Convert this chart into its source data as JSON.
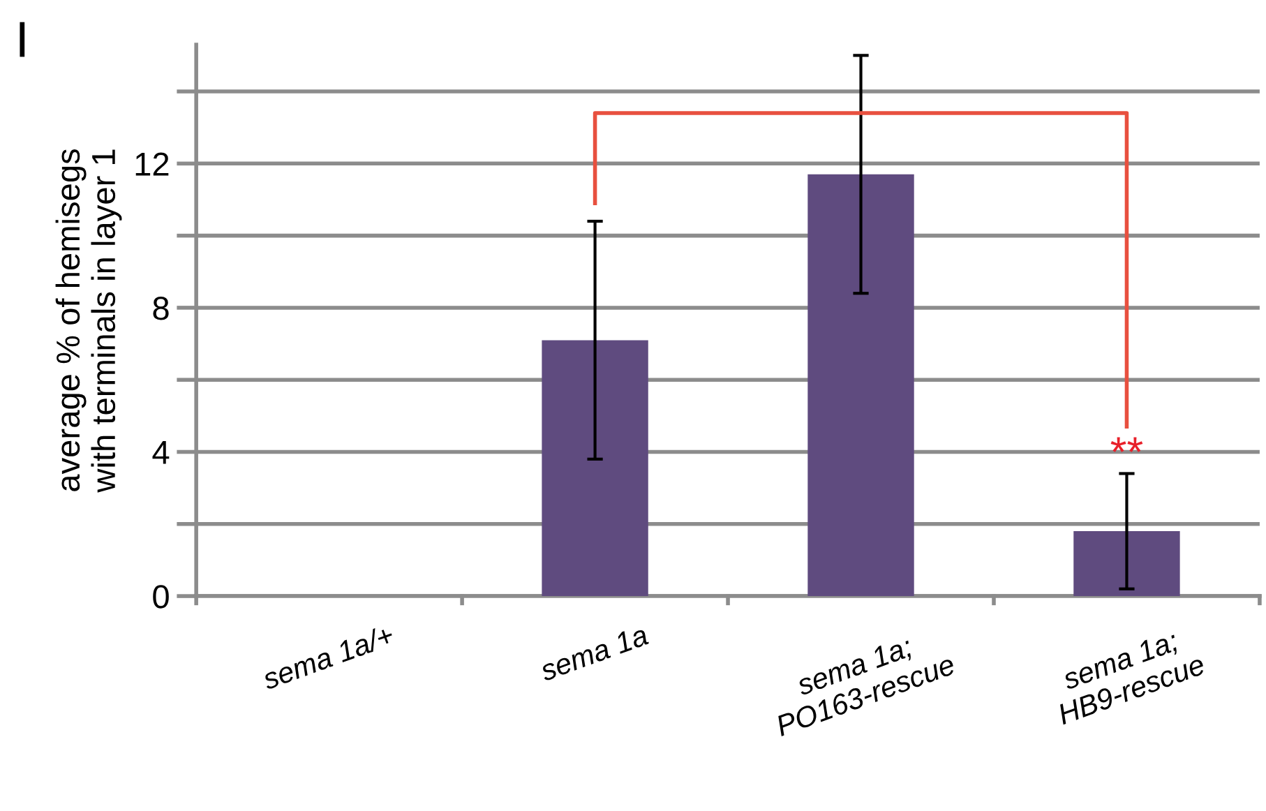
{
  "chart_data": {
    "type": "bar",
    "ylabel": "average % of hemisegs\nwith terminals in layer 1",
    "categories": [
      "sema 1a/+",
      "sema 1a",
      "sema 1a;\nPO163-rescue",
      "sema 1a;\nHB9-rescue"
    ],
    "values": [
      0,
      7.1,
      11.7,
      1.8
    ],
    "errors": [
      null,
      3.3,
      3.3,
      1.6
    ],
    "color": "#5f4b7f",
    "ylim": [
      0,
      15.3
    ],
    "yticks": [
      0,
      {
        "value": 2,
        "label": null
      },
      4,
      {
        "value": 6,
        "label": null
      },
      8,
      {
        "value": 10,
        "label": null
      },
      12,
      {
        "value": 14,
        "label": null
      }
    ],
    "grid": "y",
    "annotations": [
      "I",
      "**"
    ]
  }
}
